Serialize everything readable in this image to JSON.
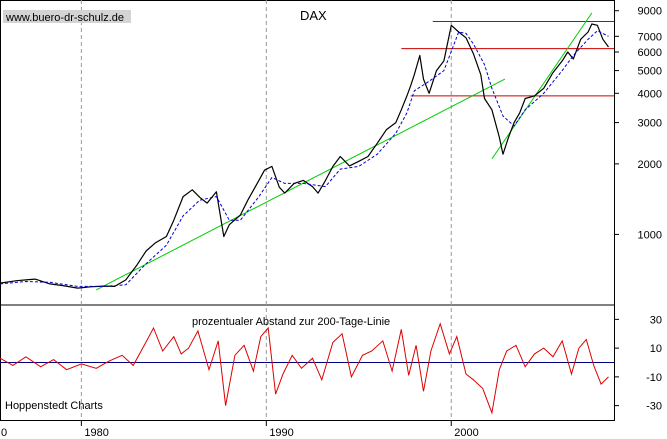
{
  "chart_data": [
    {
      "type": "line",
      "title": "DAX",
      "watermark": "www.buero-dr-schulz.de",
      "y_scale": "log",
      "ylim": [
        500,
        10000
      ],
      "y_ticks": [
        1000,
        2000,
        3000,
        4000,
        5000,
        6000,
        7000,
        9000
      ],
      "y_tick_labels": [
        "1000",
        "2000",
        "3000",
        "4000",
        "5000",
        "6000",
        "7000",
        "9000"
      ],
      "xlim": [
        1975.6,
        2008.8
      ],
      "x_ticks": [
        1980,
        1990,
        2000
      ],
      "x_tick_labels": [
        "1980",
        "1990",
        "2000"
      ],
      "x_edge_label": "0",
      "grid": "vertical dashed at 1980, 1990, 2000",
      "series": [
        {
          "color": "#000000",
          "style": "solid",
          "x": [
            1975.6,
            1976.5,
            1977.0,
            1977.5,
            1978.3,
            1979.0,
            1979.8,
            1980.5,
            1981.2,
            1981.8,
            1982.4,
            1983.0,
            1983.5,
            1984.0,
            1984.6,
            1985.0,
            1985.5,
            1986.0,
            1986.4,
            1986.8,
            1987.3,
            1987.7,
            1988.0,
            1988.6,
            1989.0,
            1989.6,
            1989.9,
            1990.3,
            1990.7,
            1991.0,
            1991.5,
            1992.0,
            1992.5,
            1992.8,
            1993.2,
            1993.6,
            1994.0,
            1994.5,
            1995.0,
            1995.5,
            1996.0,
            1996.5,
            1997.0,
            1997.3,
            1997.6,
            1997.8,
            1998.0,
            1998.3,
            1998.5,
            1998.8,
            1999.2,
            1999.6,
            2000.0,
            2000.4,
            2000.8,
            2001.2,
            2001.6,
            2001.8,
            2002.2,
            2002.6,
            2002.8,
            2003.1,
            2003.4,
            2003.7,
            2004.0,
            2004.5,
            2005.0,
            2005.5,
            2006.0,
            2006.3,
            2006.6,
            2007.0,
            2007.4,
            2007.6,
            2007.9,
            2008.2,
            2008.5
          ],
          "values": [
            620,
            635,
            640,
            645,
            615,
            605,
            590,
            598,
            602,
            600,
            640,
            740,
            850,
            920,
            980,
            1150,
            1450,
            1550,
            1440,
            1360,
            1520,
            980,
            1100,
            1210,
            1400,
            1700,
            1880,
            1950,
            1590,
            1500,
            1650,
            1700,
            1600,
            1500,
            1700,
            1950,
            2150,
            1960,
            2050,
            2150,
            2450,
            2800,
            3000,
            3400,
            3900,
            4300,
            4800,
            5800,
            4600,
            4000,
            5000,
            5500,
            7800,
            7300,
            6900,
            5900,
            4800,
            3800,
            3400,
            2600,
            2200,
            2600,
            3000,
            3300,
            3800,
            3900,
            4200,
            4900,
            5500,
            6000,
            5600,
            6800,
            7300,
            7900,
            7800,
            6800,
            6300
          ]
        },
        {
          "color": "#0000cc",
          "style": "dashed",
          "x": [
            1975.6,
            1977.0,
            1978.3,
            1979.8,
            1981.2,
            1982.4,
            1983.5,
            1984.6,
            1985.5,
            1986.4,
            1987.3,
            1988.0,
            1988.6,
            1989.6,
            1990.3,
            1991.0,
            1992.0,
            1993.2,
            1994.0,
            1995.0,
            1996.0,
            1997.0,
            1997.6,
            1998.0,
            1998.8,
            1999.6,
            2000.4,
            2000.8,
            2001.2,
            2001.8,
            2002.2,
            2002.8,
            2003.4,
            2004.0,
            2005.0,
            2006.0,
            2006.6,
            2007.4,
            2007.9,
            2008.5
          ],
          "values": [
            615,
            630,
            625,
            600,
            600,
            610,
            750,
            900,
            1200,
            1400,
            1450,
            1150,
            1150,
            1450,
            1750,
            1650,
            1650,
            1600,
            1900,
            1950,
            2200,
            2700,
            3300,
            4100,
            4500,
            5000,
            7300,
            7200,
            6500,
            5300,
            4200,
            3200,
            2900,
            3400,
            4000,
            5000,
            5800,
            6800,
            7400,
            7000
          ]
        }
      ],
      "support_lines": [
        {
          "color": "#00cc00",
          "x": [
            1980.8,
            2002.9
          ],
          "values": [
            580,
            4600
          ]
        },
        {
          "color": "#00cc00",
          "x": [
            2002.2,
            2007.6
          ],
          "values": [
            2100,
            8800
          ]
        }
      ],
      "horizontal_levels": [
        {
          "color": "#cc0000",
          "value": 8100,
          "x_start": 1999.0,
          "x_end": 2008.8
        },
        {
          "color": "#cc0000",
          "value": 6200,
          "x_start": 1997.3,
          "x_end": 2008.8
        },
        {
          "color": "#cc0000",
          "value": 3900,
          "x_start": 1997.8,
          "x_end": 2008.8
        }
      ]
    },
    {
      "type": "line",
      "title": "prozentualer Abstand zur 200-Tage-Linie",
      "ylim": [
        -40,
        40
      ],
      "y_ticks": [
        30,
        10,
        -10,
        -30
      ],
      "y_tick_labels": [
        "30",
        "10",
        "-10",
        "-30"
      ],
      "zero_line_color": "#000080",
      "series": [
        {
          "color": "#dd0000",
          "x": [
            1975.6,
            1976.3,
            1977.0,
            1977.8,
            1978.5,
            1979.2,
            1980.0,
            1980.8,
            1981.5,
            1982.2,
            1982.8,
            1983.4,
            1983.9,
            1984.4,
            1985.0,
            1985.4,
            1985.8,
            1986.3,
            1986.9,
            1987.4,
            1987.8,
            1988.3,
            1988.8,
            1989.3,
            1989.7,
            1990.1,
            1990.5,
            1990.9,
            1991.4,
            1991.9,
            1992.5,
            1993.0,
            1993.6,
            1994.1,
            1994.6,
            1995.2,
            1995.7,
            1996.3,
            1996.8,
            1997.3,
            1997.7,
            1998.1,
            1998.5,
            1998.9,
            1999.4,
            1999.9,
            2000.3,
            2000.8,
            2001.2,
            2001.7,
            2002.2,
            2002.6,
            2003.0,
            2003.5,
            2004.0,
            2004.5,
            2005.0,
            2005.5,
            2006.0,
            2006.5,
            2006.9,
            2007.3,
            2007.7,
            2008.1,
            2008.5
          ],
          "values": [
            3,
            -2,
            4,
            -3,
            2,
            -5,
            -1,
            -4,
            1,
            5,
            -2,
            12,
            24,
            8,
            18,
            6,
            10,
            22,
            -5,
            15,
            -30,
            5,
            12,
            -6,
            18,
            24,
            -22,
            -8,
            5,
            -4,
            3,
            -12,
            14,
            20,
            -10,
            5,
            8,
            15,
            -6,
            23,
            -9,
            12,
            -20,
            8,
            27,
            6,
            18,
            -8,
            -12,
            -18,
            -35,
            -5,
            8,
            12,
            -3,
            6,
            10,
            4,
            15,
            -8,
            10,
            16,
            -2,
            -15,
            -10
          ]
        }
      ]
    }
  ],
  "footer_label": "Hoppenstedt Charts"
}
